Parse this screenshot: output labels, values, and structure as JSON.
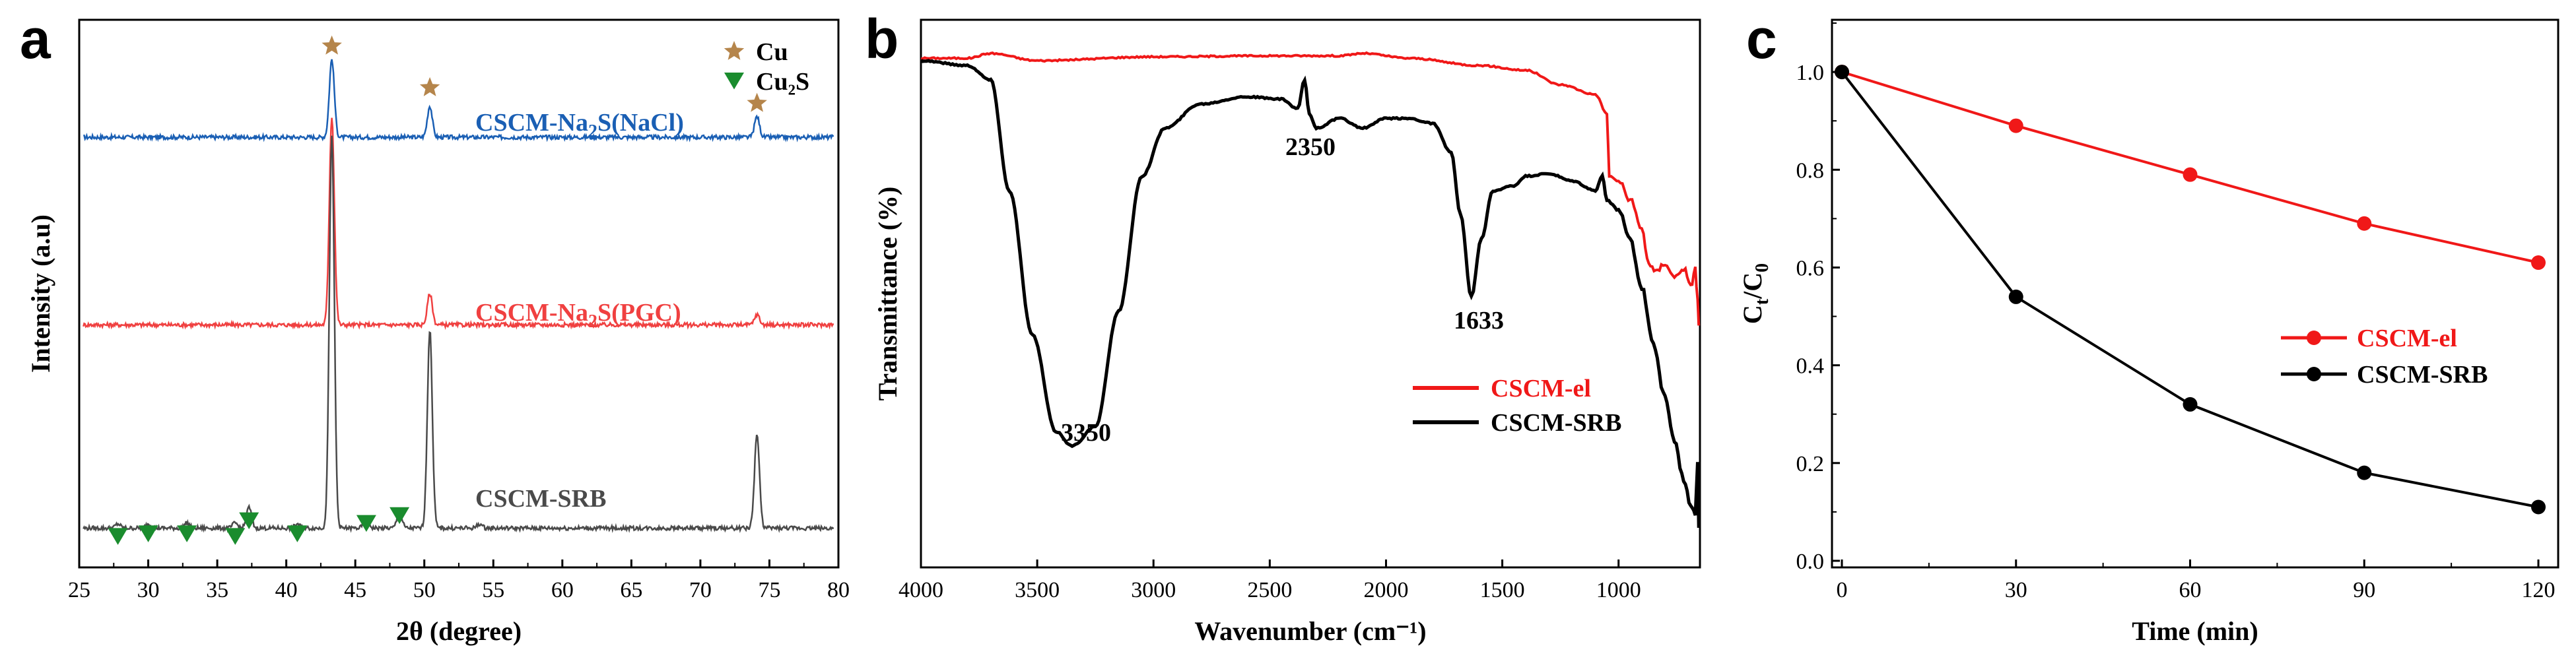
{
  "chart_data": [
    {
      "panel": "a",
      "type": "line",
      "xlabel": "2θ (degree)",
      "ylabel": "Intensity (a.u)",
      "xlim": [
        25,
        80
      ],
      "xticks": [
        "25",
        "30",
        "35",
        "40",
        "45",
        "50",
        "55",
        "60",
        "65",
        "70",
        "75",
        "80"
      ],
      "legend": [
        {
          "label": "Cu",
          "marker": "star",
          "color": "#b5854b"
        },
        {
          "label": "Cu₂S",
          "marker": "triangle-down",
          "color": "#1a8c2e"
        }
      ],
      "series": [
        {
          "name": "CSCM-Na₂S(NaCl)",
          "label_main": "CSCM-Na",
          "label_sub": "2",
          "label_tail": "S(NaCl)",
          "color": "#1a5fb4",
          "baseline": 0.8,
          "peaks": [
            [
              43.3,
              0.15
            ],
            [
              50.4,
              0.06
            ],
            [
              74.1,
              0.04
            ]
          ]
        },
        {
          "name": "CSCM-Na₂S(PGC)",
          "label_main": "CSCM-Na",
          "label_sub": "2",
          "label_tail": "S(PGC)",
          "color": "#f04040",
          "baseline": 0.44,
          "peaks": [
            [
              43.3,
              0.4
            ],
            [
              50.4,
              0.06
            ],
            [
              74.1,
              0.02
            ]
          ]
        },
        {
          "name": "CSCM-SRB",
          "label_main": "CSCM-SRB",
          "label_sub": "",
          "label_tail": "",
          "color": "#4a4a4a",
          "baseline": 0.05,
          "peaks": [
            [
              27.8,
              0.008
            ],
            [
              30.0,
              0.008
            ],
            [
              32.8,
              0.01
            ],
            [
              36.3,
              0.01
            ],
            [
              37.3,
              0.04
            ],
            [
              40.8,
              0.008
            ],
            [
              43.3,
              0.75
            ],
            [
              45.8,
              0.02
            ],
            [
              48.2,
              0.03
            ],
            [
              50.4,
              0.38
            ],
            [
              54.0,
              0.008
            ],
            [
              74.1,
              0.18
            ]
          ]
        }
      ],
      "markers": [
        {
          "type": "Cu",
          "x": 43.3,
          "y": 0.975
        },
        {
          "type": "Cu",
          "x": 50.4,
          "y": 0.895
        },
        {
          "type": "Cu",
          "x": 74.1,
          "y": 0.865
        },
        {
          "type": "Cu2S",
          "x": 27.8,
          "y": 0.035
        },
        {
          "type": "Cu2S",
          "x": 30.0,
          "y": 0.04
        },
        {
          "type": "Cu2S",
          "x": 32.8,
          "y": 0.04
        },
        {
          "type": "Cu2S",
          "x": 36.3,
          "y": 0.035
        },
        {
          "type": "Cu2S",
          "x": 37.3,
          "y": 0.065
        },
        {
          "type": "Cu2S",
          "x": 40.8,
          "y": 0.04
        },
        {
          "type": "Cu2S",
          "x": 45.8,
          "y": 0.06
        },
        {
          "type": "Cu2S",
          "x": 48.2,
          "y": 0.075
        }
      ]
    },
    {
      "panel": "b",
      "type": "line",
      "xlabel": "Wavenumber (cm⁻¹)",
      "ylabel": "Transmittance (%)",
      "xlim": [
        4000,
        650
      ],
      "xticks": [
        "4000",
        "3500",
        "3000",
        "2500",
        "2000",
        "1500",
        "1000"
      ],
      "annotations": [
        "3350",
        "2350",
        "1633"
      ],
      "series": [
        {
          "name": "CSCM-el",
          "color": "#f01818",
          "points": [
            [
              4000,
              0.975
            ],
            [
              3800,
              0.975
            ],
            [
              3700,
              0.985
            ],
            [
              3500,
              0.97
            ],
            [
              3000,
              0.978
            ],
            [
              2500,
              0.98
            ],
            [
              2200,
              0.98
            ],
            [
              2100,
              0.985
            ],
            [
              1900,
              0.975
            ],
            [
              1600,
              0.96
            ],
            [
              1400,
              0.95
            ],
            [
              1250,
              0.92
            ],
            [
              1100,
              0.9
            ],
            [
              1050,
              0.86
            ],
            [
              1040,
              0.73
            ],
            [
              1000,
              0.72
            ],
            [
              950,
              0.68
            ],
            [
              900,
              0.62
            ],
            [
              870,
              0.55
            ],
            [
              840,
              0.53
            ],
            [
              800,
              0.55
            ],
            [
              760,
              0.52
            ],
            [
              720,
              0.54
            ],
            [
              690,
              0.5
            ],
            [
              670,
              0.54
            ],
            [
              660,
              0.47
            ],
            [
              655,
              0.42
            ]
          ]
        },
        {
          "name": "CSCM-SRB",
          "color": "#000000",
          "points": [
            [
              4000,
              0.97
            ],
            [
              3800,
              0.96
            ],
            [
              3700,
              0.93
            ],
            [
              3620,
              0.7
            ],
            [
              3520,
              0.4
            ],
            [
              3420,
              0.2
            ],
            [
              3350,
              0.17
            ],
            [
              3250,
              0.21
            ],
            [
              3150,
              0.45
            ],
            [
              3050,
              0.73
            ],
            [
              2950,
              0.83
            ],
            [
              2800,
              0.88
            ],
            [
              2600,
              0.895
            ],
            [
              2450,
              0.89
            ],
            [
              2380,
              0.87
            ],
            [
              2350,
              0.93
            ],
            [
              2330,
              0.86
            ],
            [
              2300,
              0.83
            ],
            [
              2200,
              0.85
            ],
            [
              2100,
              0.83
            ],
            [
              2000,
              0.85
            ],
            [
              1900,
              0.85
            ],
            [
              1800,
              0.84
            ],
            [
              1720,
              0.78
            ],
            [
              1680,
              0.65
            ],
            [
              1633,
              0.48
            ],
            [
              1590,
              0.6
            ],
            [
              1540,
              0.7
            ],
            [
              1450,
              0.71
            ],
            [
              1400,
              0.73
            ],
            [
              1300,
              0.735
            ],
            [
              1200,
              0.72
            ],
            [
              1100,
              0.7
            ],
            [
              1070,
              0.73
            ],
            [
              1050,
              0.68
            ],
            [
              1000,
              0.66
            ],
            [
              950,
              0.6
            ],
            [
              900,
              0.5
            ],
            [
              850,
              0.38
            ],
            [
              800,
              0.27
            ],
            [
              760,
              0.18
            ],
            [
              720,
              0.1
            ],
            [
              690,
              0.05
            ],
            [
              670,
              0.03
            ],
            [
              660,
              0.14
            ],
            [
              655,
              0.0
            ]
          ]
        }
      ]
    },
    {
      "panel": "c",
      "type": "line",
      "xlabel": "Time (min)",
      "ylabel_main": "C",
      "ylabel_sub1": "t",
      "ylabel_mid": "/C",
      "ylabel_sub2": "0",
      "xlim": [
        0,
        120
      ],
      "ylim": [
        0,
        1.1
      ],
      "xticks": [
        "0",
        "30",
        "60",
        "90",
        "120"
      ],
      "yticks": [
        "0.0",
        "0.2",
        "0.4",
        "0.6",
        "0.8",
        "1.0"
      ],
      "x": [
        0,
        30,
        60,
        90,
        120
      ],
      "series": [
        {
          "name": "CSCM-el",
          "color": "#f01818",
          "values": [
            1.0,
            0.89,
            0.79,
            0.69,
            0.61
          ]
        },
        {
          "name": "CSCM-SRB",
          "color": "#000000",
          "values": [
            1.0,
            0.54,
            0.32,
            0.18,
            0.11
          ]
        }
      ]
    }
  ]
}
